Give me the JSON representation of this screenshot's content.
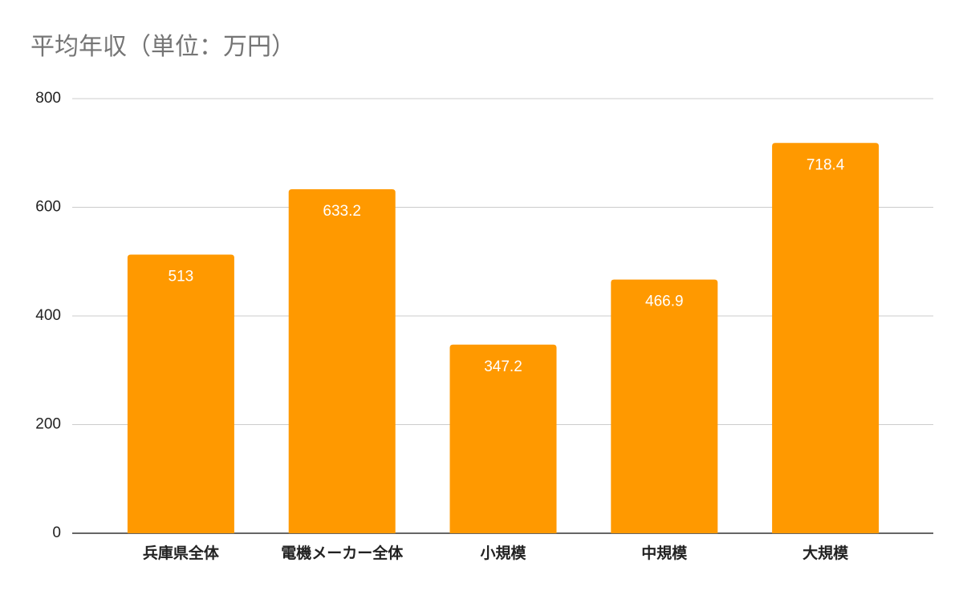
{
  "chart_data": {
    "type": "bar",
    "title": "平均年収（単位：万円）",
    "categories": [
      "兵庫県全体",
      "電機メーカー全体",
      "小規模",
      "中規模",
      "大規模"
    ],
    "values": [
      513,
      633.2,
      347.2,
      466.9,
      718.4
    ],
    "color": "#ff9900",
    "ylim": [
      0,
      800
    ],
    "yticks": [
      0,
      200,
      400,
      600,
      800
    ],
    "grid": true
  }
}
